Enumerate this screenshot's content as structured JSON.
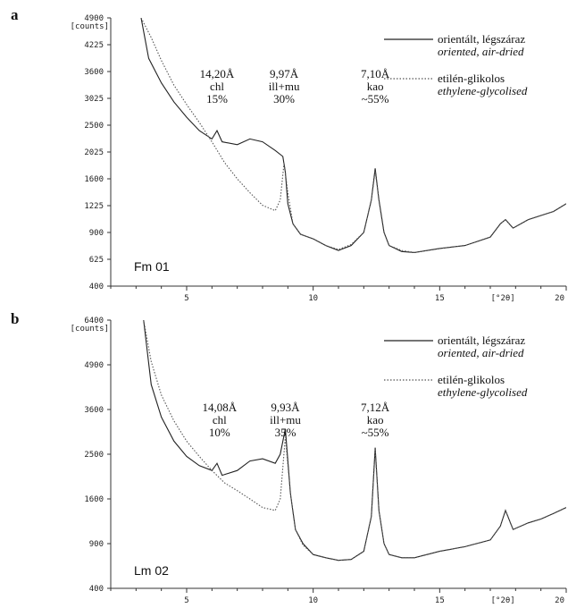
{
  "chart_data": [
    {
      "type": "line",
      "panel_letter": "a",
      "sample_label": "Fm 01",
      "y_unit_label": "[counts]",
      "x_unit_label": "[°2θ]",
      "xlim": [
        2,
        20
      ],
      "ylim": [
        400,
        4900
      ],
      "y_scale": "sqrt",
      "y_ticks": [
        {
          "value": 400,
          "label": "400"
        },
        {
          "value": 625,
          "label": "625"
        },
        {
          "value": 900,
          "label": "900"
        },
        {
          "value": 1225,
          "label": "1225"
        },
        {
          "value": 1600,
          "label": "1600"
        },
        {
          "value": 2025,
          "label": "2025"
        },
        {
          "value": 2500,
          "label": "2500"
        },
        {
          "value": 3025,
          "label": "3025"
        },
        {
          "value": 3600,
          "label": "3600"
        },
        {
          "value": 4225,
          "label": "4225"
        },
        {
          "value": 4900,
          "label": "4900"
        }
      ],
      "x_ticks": [
        {
          "value": 5,
          "label": "5"
        },
        {
          "value": 10,
          "label": "10"
        },
        {
          "value": 15,
          "label": "15"
        },
        {
          "value": 17.5,
          "label": "[°2θ]"
        },
        {
          "value": 20,
          "label": "20"
        }
      ],
      "legend": [
        {
          "line1": "orientált, légszáraz",
          "line2": "oriented, air-dried",
          "style": "solid"
        },
        {
          "line1": "etilén-glikolos",
          "line2": "ethylene-glycolised",
          "style": "dotted"
        }
      ],
      "annotations": [
        {
          "lines": [
            "14,20Å",
            "chl",
            "15%"
          ],
          "x": 6.2
        },
        {
          "lines": [
            "9,97Å",
            "ill+mu",
            "30%"
          ],
          "x": 8.85
        },
        {
          "lines": [
            "7,10Å",
            "kao",
            "~55%"
          ],
          "x": 12.45
        }
      ],
      "series": [
        {
          "style": "solid",
          "x": [
            3.2,
            3.5,
            4.0,
            4.5,
            5.0,
            5.5,
            6.0,
            6.2,
            6.4,
            7.0,
            7.5,
            8.0,
            8.5,
            8.8,
            8.9,
            9.0,
            9.2,
            9.5,
            10.0,
            10.5,
            11.0,
            11.5,
            12.0,
            12.3,
            12.45,
            12.6,
            12.8,
            13.0,
            13.5,
            14.0,
            15.0,
            16.0,
            17.0,
            17.4,
            17.6,
            17.9,
            18.5,
            19.0,
            19.5,
            20.0
          ],
          "y": [
            4900,
            3900,
            3350,
            2950,
            2650,
            2400,
            2250,
            2400,
            2200,
            2150,
            2250,
            2200,
            2050,
            1950,
            1700,
            1250,
            1000,
            880,
            830,
            760,
            710,
            760,
            900,
            1300,
            1760,
            1300,
            900,
            760,
            700,
            690,
            730,
            760,
            850,
            1000,
            1050,
            950,
            1050,
            1100,
            1150,
            1250
          ]
        },
        {
          "style": "dotted",
          "x": [
            3.2,
            3.6,
            4.0,
            4.5,
            5.0,
            5.5,
            6.0,
            6.5,
            7.0,
            7.5,
            8.0,
            8.5,
            8.7,
            8.85,
            9.0,
            9.2,
            9.5,
            10.0,
            10.5,
            11.0,
            11.5,
            12.0,
            12.3,
            12.45,
            12.6,
            12.8,
            13.0,
            13.5,
            14.0,
            15.0,
            16.0,
            17.0,
            17.4,
            17.6,
            17.9,
            18.5,
            19.0,
            19.5,
            20.0
          ],
          "y": [
            4900,
            4400,
            3850,
            3300,
            2900,
            2550,
            2200,
            1850,
            1600,
            1400,
            1230,
            1160,
            1300,
            1850,
            1400,
            1000,
            880,
            830,
            760,
            720,
            770,
            900,
            1300,
            1720,
            1300,
            900,
            760,
            710,
            690,
            730,
            760,
            850,
            1000,
            1050,
            950,
            1050,
            1100,
            1150,
            1250
          ]
        }
      ]
    },
    {
      "type": "line",
      "panel_letter": "b",
      "sample_label": "Lm 02",
      "y_unit_label": "[counts]",
      "x_unit_label": "[°2θ]",
      "xlim": [
        2,
        20
      ],
      "ylim": [
        400,
        6400
      ],
      "y_scale": "sqrt",
      "y_ticks": [
        {
          "value": 400,
          "label": "400"
        },
        {
          "value": 900,
          "label": "900"
        },
        {
          "value": 1600,
          "label": "1600"
        },
        {
          "value": 2500,
          "label": "2500"
        },
        {
          "value": 3600,
          "label": "3600"
        },
        {
          "value": 4900,
          "label": "4900"
        },
        {
          "value": 6400,
          "label": "6400"
        }
      ],
      "x_ticks": [
        {
          "value": 5,
          "label": "5"
        },
        {
          "value": 10,
          "label": "10"
        },
        {
          "value": 15,
          "label": "15"
        },
        {
          "value": 17.5,
          "label": "[°2θ]"
        },
        {
          "value": 20,
          "label": "20"
        }
      ],
      "legend": [
        {
          "line1": "orientált, légszáraz",
          "line2": "oriented, air-dried",
          "style": "solid"
        },
        {
          "line1": "etilén-glikolos",
          "line2": "ethylene-glycolised",
          "style": "dotted"
        }
      ],
      "annotations": [
        {
          "lines": [
            "14,08Å",
            "chl",
            "10%"
          ],
          "x": 6.3
        },
        {
          "lines": [
            "9,93Å",
            "ill+mu",
            "35%"
          ],
          "x": 8.9
        },
        {
          "lines": [
            "7,12Å",
            "kao",
            "~55%"
          ],
          "x": 12.45
        }
      ],
      "series": [
        {
          "style": "solid",
          "x": [
            3.3,
            3.6,
            4.0,
            4.5,
            5.0,
            5.5,
            6.0,
            6.2,
            6.4,
            7.0,
            7.5,
            8.0,
            8.5,
            8.7,
            8.9,
            9.1,
            9.3,
            9.6,
            10.0,
            10.5,
            11.0,
            11.5,
            12.0,
            12.3,
            12.45,
            12.6,
            12.8,
            13.0,
            13.5,
            14.0,
            15.0,
            16.0,
            17.0,
            17.4,
            17.6,
            17.9,
            18.5,
            19.0,
            19.5,
            20.0
          ],
          "y": [
            6400,
            4300,
            3400,
            2800,
            2450,
            2250,
            2150,
            2300,
            2050,
            2150,
            2350,
            2400,
            2300,
            2500,
            3100,
            1700,
            1100,
            900,
            760,
            720,
            690,
            700,
            800,
            1300,
            2650,
            1400,
            900,
            760,
            720,
            720,
            800,
            860,
            950,
            1150,
            1400,
            1100,
            1200,
            1260,
            1350,
            1450
          ]
        },
        {
          "style": "dotted",
          "x": [
            3.3,
            3.6,
            4.0,
            4.5,
            5.0,
            5.5,
            6.0,
            6.5,
            7.0,
            7.5,
            8.0,
            8.5,
            8.7,
            8.9,
            9.1,
            9.3,
            9.6,
            10.0,
            10.5,
            11.0,
            11.5,
            12.0,
            12.3,
            12.45,
            12.6,
            12.8,
            13.0,
            13.5,
            14.0,
            15.0,
            16.0,
            17.0,
            17.4,
            17.6,
            17.9,
            18.5,
            19.0,
            19.5,
            20.0
          ],
          "y": [
            6400,
            5000,
            4000,
            3300,
            2800,
            2450,
            2150,
            1900,
            1750,
            1600,
            1450,
            1400,
            1600,
            2900,
            1700,
            1100,
            880,
            760,
            720,
            690,
            700,
            800,
            1300,
            2600,
            1400,
            900,
            760,
            720,
            720,
            800,
            860,
            950,
            1150,
            1400,
            1100,
            1200,
            1260,
            1350,
            1450
          ]
        }
      ]
    }
  ]
}
